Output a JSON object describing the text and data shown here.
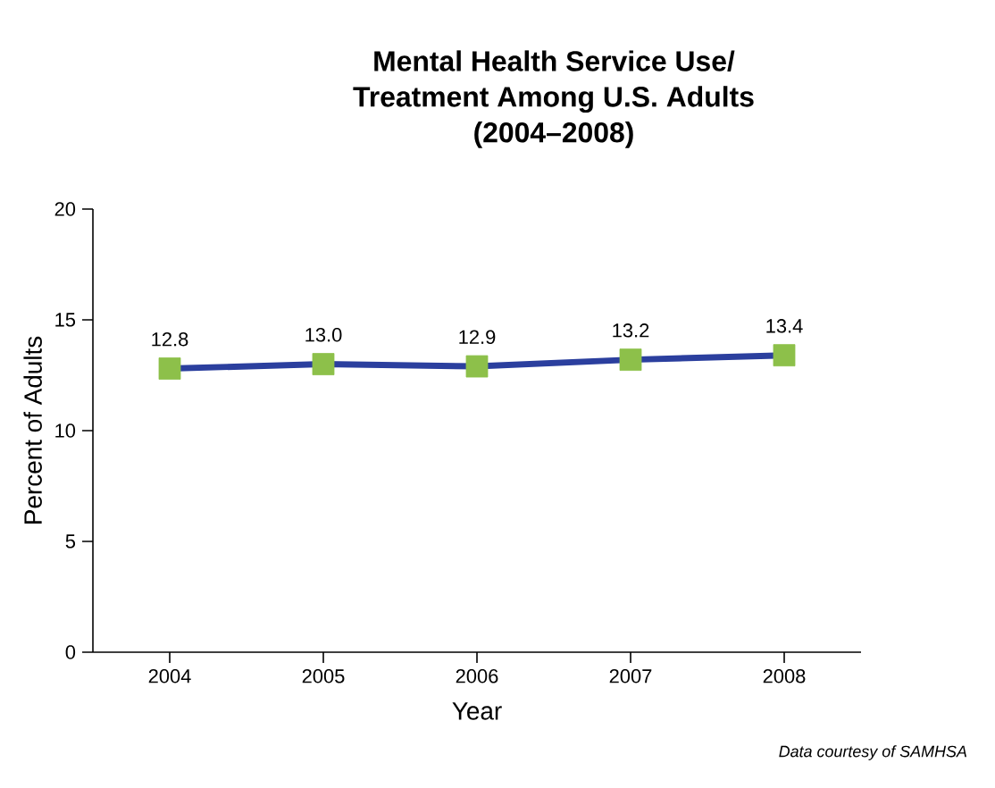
{
  "chart_data": {
    "type": "line",
    "title": "Mental Health Service Use/\nTreatment Among U.S. Adults\n(2004–2008)",
    "xlabel": "Year",
    "ylabel": "Percent of Adults",
    "categories": [
      "2004",
      "2005",
      "2006",
      "2007",
      "2008"
    ],
    "series": [
      {
        "color": "#2b3f9e",
        "colors": [
          "#8dc04a",
          "#8dc04a",
          "#8dc04a",
          "#8dc04a",
          "#8dc04a"
        ],
        "values": [
          12.8,
          13.0,
          12.9,
          13.2,
          13.4
        ],
        "value_labels": [
          "12.8",
          "13.0",
          "12.9",
          "13.2",
          "13.4"
        ]
      }
    ],
    "ylim": [
      0,
      20
    ],
    "yticks": [
      0,
      5,
      10,
      15,
      20
    ],
    "marker": "square",
    "line_style": "solid",
    "annotations": [
      "Data courtesy of SAMHSA"
    ]
  }
}
